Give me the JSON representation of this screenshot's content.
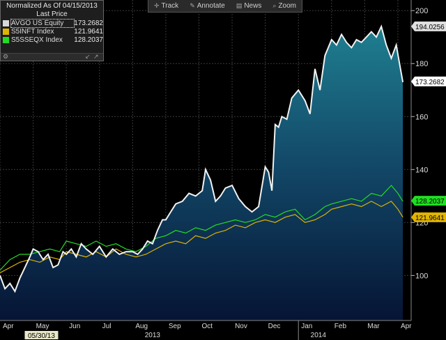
{
  "toolbar": {
    "items": [
      {
        "label": "Track",
        "icon": "crosshair-icon"
      },
      {
        "label": "Annotate",
        "icon": "pencil-icon"
      },
      {
        "label": "News",
        "icon": "news-icon"
      },
      {
        "label": "Zoom",
        "icon": "magnifier-icon"
      }
    ]
  },
  "legend": {
    "title_line1": "Normalized As Of 04/15/2013",
    "title_line2": "Last Price",
    "entries": [
      {
        "name": "AVGO US Equity",
        "value": "173.2682",
        "color": "#d8d8d8"
      },
      {
        "name": "S5INFT Index",
        "value": "121.9641",
        "color": "#e0b400"
      },
      {
        "name": "S5SSEQX Index",
        "value": "128.2037",
        "color": "#22dd22"
      }
    ]
  },
  "chart_data": {
    "type": "line",
    "title": "",
    "x_labels": [
      "Apr",
      "May",
      "Jun",
      "Jul",
      "Aug",
      "Sep",
      "Oct",
      "Nov",
      "Dec",
      "Jan",
      "Feb",
      "Mar",
      "Apr"
    ],
    "year_labels": [
      "2013",
      "2014"
    ],
    "cursor_date": "05/30/13",
    "y_ticks": [
      100,
      120,
      140,
      160,
      180,
      200
    ],
    "ylim": [
      83,
      204
    ],
    "grid": true,
    "x_months_range": [
      0,
      12.4
    ],
    "series": [
      {
        "name": "AVGO US Equity",
        "color": "#f2f2f2",
        "area_fill": true,
        "x": [
          0,
          0.15,
          0.3,
          0.45,
          0.6,
          0.75,
          0.9,
          1.0,
          1.15,
          1.3,
          1.45,
          1.6,
          1.75,
          1.9,
          2.0,
          2.15,
          2.3,
          2.45,
          2.6,
          2.8,
          3.0,
          3.2,
          3.4,
          3.6,
          3.8,
          4.0,
          4.15,
          4.3,
          4.45,
          4.6,
          4.75,
          4.9,
          5.0,
          5.15,
          5.3,
          5.5,
          5.7,
          5.9,
          6.0,
          6.1,
          6.2,
          6.35,
          6.5,
          6.65,
          6.8,
          7.0,
          7.2,
          7.4,
          7.6,
          7.8,
          8.0,
          8.1,
          8.2,
          8.3,
          8.4,
          8.5,
          8.65,
          8.8,
          9.0,
          9.2,
          9.35,
          9.5,
          9.65,
          9.8,
          10.0,
          10.15,
          10.3,
          10.45,
          10.6,
          10.75,
          10.9,
          11.05,
          11.2,
          11.35,
          11.5,
          11.65,
          11.8,
          11.95,
          12.05,
          12.15
        ],
        "values": [
          100,
          95,
          97,
          94,
          99,
          103,
          107,
          110,
          109,
          106,
          108,
          103,
          104,
          109,
          108,
          110,
          107,
          112,
          110,
          108,
          111,
          107,
          110,
          108,
          109,
          109,
          108,
          110,
          113,
          112,
          117,
          121,
          121,
          124,
          127,
          128,
          131,
          130,
          131,
          132,
          140,
          136,
          128,
          130,
          133,
          134,
          129,
          126,
          124,
          126,
          141,
          139,
          132,
          157,
          156,
          160,
          159,
          167,
          170,
          166,
          161,
          178,
          170,
          183,
          189,
          187,
          191,
          188,
          186,
          189,
          188,
          190,
          192,
          190,
          194,
          187,
          182,
          187,
          180,
          173
        ]
      },
      {
        "name": "S5INFT Index",
        "color": "#e0b400",
        "area_fill": false,
        "x": [
          0,
          0.3,
          0.6,
          0.9,
          1.2,
          1.5,
          1.8,
          2.0,
          2.3,
          2.6,
          2.9,
          3.2,
          3.5,
          3.8,
          4.1,
          4.4,
          4.7,
          5.0,
          5.3,
          5.6,
          5.9,
          6.2,
          6.5,
          6.8,
          7.1,
          7.4,
          7.7,
          8.0,
          8.3,
          8.6,
          8.9,
          9.2,
          9.5,
          9.8,
          10.0,
          10.3,
          10.6,
          10.9,
          11.2,
          11.5,
          11.8,
          12.0,
          12.15
        ],
        "values": [
          101,
          103,
          105,
          106,
          105,
          107,
          106,
          109,
          108,
          107,
          109,
          107,
          110,
          108,
          107,
          108,
          110,
          112,
          113,
          112,
          115,
          114,
          116,
          117,
          119,
          118,
          120,
          121,
          120,
          122,
          123,
          120,
          121,
          123,
          125,
          126,
          127,
          126,
          128,
          126,
          128,
          125,
          122
        ]
      },
      {
        "name": "S5SSEQX Index",
        "color": "#22dd22",
        "area_fill": false,
        "x": [
          0,
          0.3,
          0.6,
          0.9,
          1.2,
          1.5,
          1.8,
          2.0,
          2.3,
          2.6,
          2.9,
          3.2,
          3.5,
          3.8,
          4.1,
          4.4,
          4.7,
          5.0,
          5.3,
          5.6,
          5.9,
          6.2,
          6.5,
          6.8,
          7.1,
          7.4,
          7.7,
          8.0,
          8.3,
          8.6,
          8.9,
          9.2,
          9.5,
          9.8,
          10.0,
          10.3,
          10.6,
          10.9,
          11.2,
          11.5,
          11.8,
          12.0,
          12.15
        ],
        "values": [
          102,
          106,
          108,
          108,
          109,
          110,
          109,
          113,
          112,
          111,
          113,
          111,
          112,
          110,
          109,
          111,
          114,
          115,
          117,
          116,
          118,
          117,
          119,
          120,
          121,
          120,
          121,
          123,
          122,
          124,
          125,
          121,
          123,
          126,
          127,
          128,
          129,
          128,
          131,
          130,
          134,
          131,
          128
        ]
      }
    ],
    "last_value_labels": [
      {
        "value": "194.0256",
        "at": 194.0256,
        "bg": "#e0e0e0",
        "fg": "#000000"
      },
      {
        "value": "173.2682",
        "at": 173.2682,
        "bg": "#ffffff",
        "fg": "#000000"
      },
      {
        "value": "128.2037",
        "at": 128.2037,
        "bg": "#22dd22",
        "fg": "#000000"
      },
      {
        "value": "121.9641",
        "at": 121.9641,
        "bg": "#e0b400",
        "fg": "#000000"
      }
    ]
  }
}
